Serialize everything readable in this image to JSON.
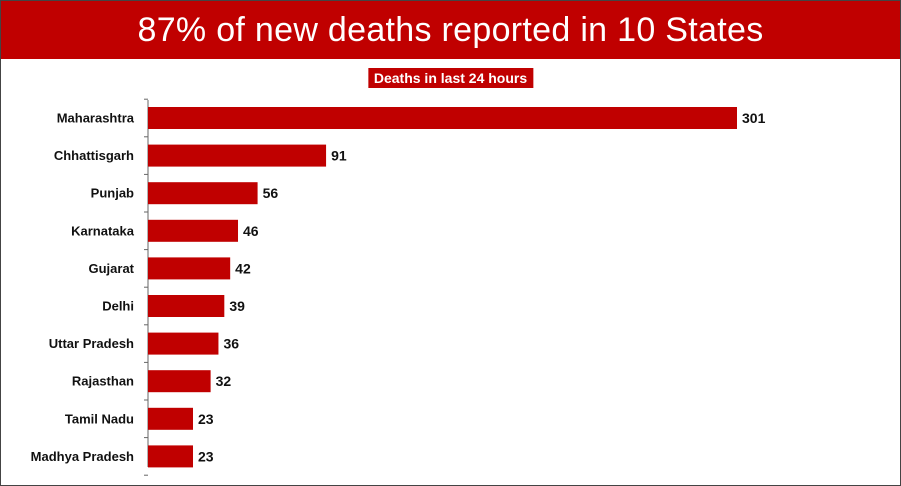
{
  "title": "87% of new deaths reported in 10 States",
  "colors": {
    "accent": "#c00000",
    "bar": "#c00000",
    "text": "#111111"
  },
  "chart_data": {
    "type": "bar",
    "orientation": "horizontal",
    "title": "Deaths in last 24 hours",
    "xlabel": "",
    "ylabel": "",
    "categories": [
      "Maharashtra",
      "Chhattisgarh",
      "Punjab",
      "Karnataka",
      "Gujarat",
      "Delhi",
      "Uttar Pradesh",
      "Rajasthan",
      "Tamil Nadu",
      "Madhya Pradesh"
    ],
    "values": [
      301,
      91,
      56,
      46,
      42,
      39,
      36,
      32,
      23,
      23
    ],
    "xlim": [
      0,
      301
    ],
    "grid": false,
    "legend": "none",
    "data_labels": true
  }
}
